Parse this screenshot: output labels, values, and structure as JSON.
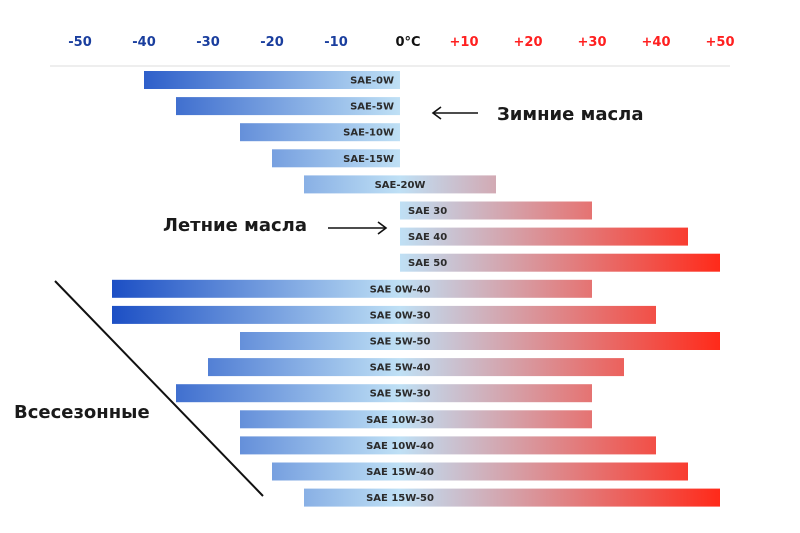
{
  "chart_data": {
    "type": "bar",
    "orientation": "horizontal-range",
    "title": "",
    "xlabel": "",
    "ylabel": "",
    "xlim": [
      -50,
      50
    ],
    "x_ticks": [
      -50,
      -40,
      -30,
      -20,
      -10,
      0,
      10,
      20,
      30,
      40,
      50
    ],
    "x_tick_labels": [
      "-50",
      "-40",
      "-30",
      "-20",
      "-10",
      "0°C",
      "+10",
      "+20",
      "+30",
      "+40",
      "+50"
    ],
    "grid": false,
    "colors": {
      "cold": "#0a3fbf",
      "mid": "#bfe0f5",
      "hot": "#ff2a1a",
      "neg_tick": "#1a3e9e",
      "pos_tick": "#ff2020",
      "zero_tick": "#111111"
    },
    "ranges": [
      {
        "label": "SAE-0W",
        "from": -40,
        "to": 0
      },
      {
        "label": "SAE-5W",
        "from": -35,
        "to": 0
      },
      {
        "label": "SAE-10W",
        "from": -25,
        "to": 0
      },
      {
        "label": "SAE-15W",
        "from": -20,
        "to": 0
      },
      {
        "label": "SAE-20W",
        "from": -15,
        "to": 15
      },
      {
        "label": "SAE 30",
        "from": 0,
        "to": 30
      },
      {
        "label": "SAE 40",
        "from": 0,
        "to": 45
      },
      {
        "label": "SAE 50",
        "from": 0,
        "to": 50
      },
      {
        "label": "SAE 0W-40",
        "from": -45,
        "to": 30
      },
      {
        "label": "SAE 0W-30",
        "from": -45,
        "to": 40
      },
      {
        "label": "SAE 5W-50",
        "from": -25,
        "to": 50
      },
      {
        "label": "SAE 5W-40",
        "from": -30,
        "to": 35
      },
      {
        "label": "SAE 5W-30",
        "from": -35,
        "to": 30
      },
      {
        "label": "SAE 10W-30",
        "from": -25,
        "to": 30
      },
      {
        "label": "SAE 10W-40",
        "from": -25,
        "to": 40
      },
      {
        "label": "SAE 15W-40",
        "from": -20,
        "to": 45
      },
      {
        "label": "SAE 15W-50",
        "from": -15,
        "to": 50
      }
    ],
    "annotations": {
      "winter": "Зимние масла",
      "summer": "Летние масла",
      "allseason": "Всесезонные"
    }
  }
}
